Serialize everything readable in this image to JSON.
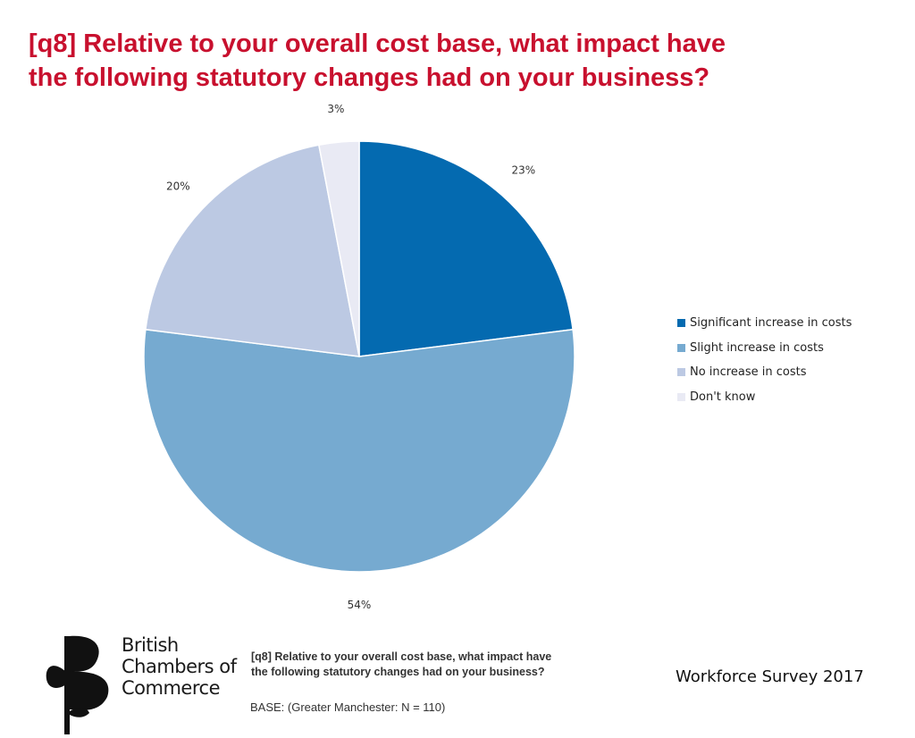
{
  "header": {
    "title_line1": "[q8] Relative to your overall cost base, what impact have",
    "title_line2": "the following statutory changes had on your business?"
  },
  "chart_data": {
    "type": "pie",
    "categories": [
      "Significant increase in costs",
      "Slight increase in costs",
      "No increase in costs",
      "Don't know"
    ],
    "values": [
      23,
      54,
      20,
      3
    ],
    "value_labels": [
      "23%",
      "54%",
      "20%",
      "3%"
    ],
    "colors": [
      "#046ab0",
      "#76aad0",
      "#bcc9e3",
      "#e9eaf4"
    ],
    "legend_position": "right"
  },
  "logo": {
    "line1": "British",
    "line2": "Chambers of",
    "line3": "Commerce"
  },
  "footer": {
    "question_line1": "[q8] Relative to your overall cost base, what impact have",
    "question_line2": "the following statutory changes had on your business?",
    "base": "BASE: (Greater Manchester: N = 110)",
    "survey": "Workforce Survey 2017"
  }
}
